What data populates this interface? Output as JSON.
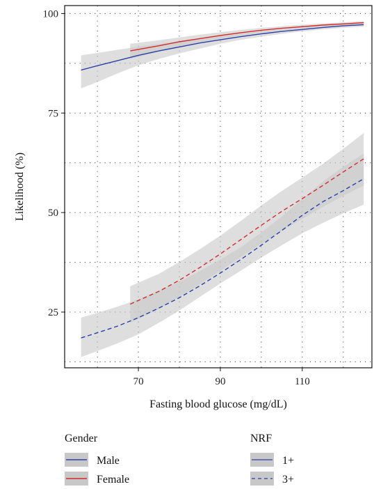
{
  "chart_data": {
    "type": "line",
    "xlabel": "Fasting blood glucose (mg/dL)",
    "ylabel": "Likelihood (%)",
    "xlim": [
      52,
      127
    ],
    "ylim": [
      11,
      102
    ],
    "xticks": [
      70,
      90,
      110
    ],
    "yticks": [
      25,
      50,
      75,
      100
    ],
    "x_minor_grid": [
      60,
      80,
      100,
      120
    ],
    "y_minor_grid": [
      12.5,
      37.5,
      62.5,
      87.5
    ],
    "grid": true,
    "grid_style": "dotted",
    "series": [
      {
        "gender": "Male",
        "nrf": "1+",
        "color": "#2b3fa8",
        "dash": "solid",
        "x": [
          56,
          60,
          65,
          70,
          75,
          80,
          85,
          90,
          95,
          100,
          105,
          110,
          115,
          120,
          125
        ],
        "y": [
          85.8,
          86.9,
          88.2,
          89.5,
          90.6,
          91.6,
          92.6,
          93.4,
          94.2,
          94.9,
          95.5,
          96.0,
          96.5,
          96.9,
          97.2
        ],
        "ci_lower": [
          81.2,
          82.8,
          85.0,
          87.0,
          88.6,
          90.0,
          91.2,
          92.4,
          93.4,
          94.2,
          94.9,
          95.5,
          96.0,
          96.4,
          96.7
        ],
        "ci_upper": [
          89.5,
          90.1,
          90.9,
          91.7,
          92.4,
          93.1,
          93.8,
          94.4,
          95.0,
          95.5,
          96.0,
          96.5,
          96.9,
          97.3,
          97.6
        ]
      },
      {
        "gender": "Female",
        "nrf": "1+",
        "color": "#d42a2a",
        "dash": "solid",
        "x": [
          68,
          75,
          80,
          85,
          90,
          95,
          100,
          105,
          110,
          115,
          120,
          125
        ],
        "y": [
          90.6,
          91.9,
          92.9,
          93.7,
          94.5,
          95.2,
          95.8,
          96.3,
          96.7,
          97.1,
          97.4,
          97.7
        ],
        "ci_lower": [
          88.6,
          90.4,
          91.7,
          92.8,
          93.7,
          94.5,
          95.2,
          95.8,
          96.3,
          96.7,
          97.0,
          97.2
        ],
        "ci_upper": [
          92.4,
          93.3,
          94.0,
          94.7,
          95.3,
          95.9,
          96.4,
          96.8,
          97.2,
          97.5,
          97.8,
          98.1
        ]
      },
      {
        "gender": "Male",
        "nrf": "3+",
        "color": "#2b3fa8",
        "dash": "dashed",
        "x": [
          56,
          60,
          65,
          70,
          75,
          80,
          85,
          90,
          95,
          100,
          105,
          110,
          115,
          120,
          125
        ],
        "y": [
          18.5,
          19.8,
          21.5,
          23.6,
          26.0,
          28.6,
          31.6,
          34.8,
          38.2,
          41.8,
          45.5,
          49.3,
          52.7,
          55.5,
          58.5
        ],
        "ci_lower": [
          13.7,
          15.2,
          17.2,
          19.4,
          22.3,
          25.4,
          28.8,
          32.2,
          35.4,
          38.7,
          41.8,
          44.8,
          47.4,
          49.8,
          52.0
        ],
        "ci_upper": [
          23.6,
          24.8,
          26.4,
          28.2,
          30.4,
          32.6,
          35.3,
          38.2,
          41.3,
          45.0,
          49.0,
          53.4,
          57.8,
          61.5,
          64.8
        ]
      },
      {
        "gender": "Female",
        "nrf": "3+",
        "color": "#d42a2a",
        "dash": "dashed",
        "x": [
          68,
          75,
          80,
          85,
          90,
          95,
          100,
          105,
          110,
          115,
          120,
          125
        ],
        "y": [
          27.0,
          30.2,
          33.0,
          36.2,
          39.6,
          43.2,
          46.8,
          50.3,
          53.5,
          56.8,
          60.2,
          63.5
        ],
        "ci_lower": [
          22.3,
          25.8,
          28.8,
          32.0,
          35.4,
          38.8,
          42.2,
          45.4,
          48.4,
          51.4,
          54.2,
          56.8
        ],
        "ci_upper": [
          31.5,
          34.6,
          37.6,
          40.8,
          44.2,
          47.9,
          51.8,
          55.4,
          58.8,
          62.2,
          66.0,
          70.0
        ]
      }
    ],
    "legends": [
      {
        "title": "Gender",
        "entries": [
          {
            "label": "Male",
            "color": "#2b3fa8",
            "dash": "solid"
          },
          {
            "label": "Female",
            "color": "#d42a2a",
            "dash": "solid"
          }
        ]
      },
      {
        "title": "NRF",
        "entries": [
          {
            "label": "1+",
            "color": "#2b3fa8",
            "dash": "solid"
          },
          {
            "label": "3+",
            "color": "#2b3fa8",
            "dash": "dashed"
          }
        ]
      }
    ],
    "legend_placement": "bottom",
    "ribbon_color": "#c8c8c8"
  }
}
